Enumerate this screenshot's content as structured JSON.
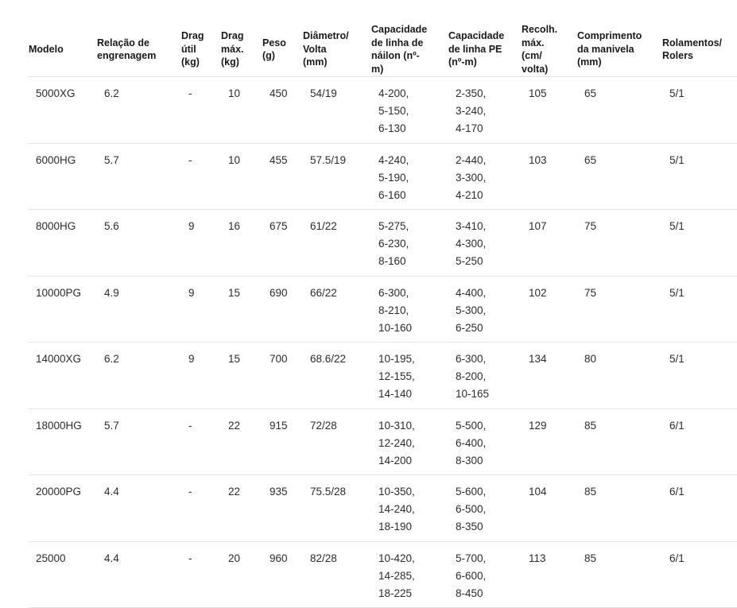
{
  "table": {
    "columns": [
      {
        "label": "Modelo"
      },
      {
        "label": "Relação de\nengrenagem"
      },
      {
        "label": "Drag\nútil\n(kg)"
      },
      {
        "label": "Drag\nmáx.\n(kg)"
      },
      {
        "label": "Peso\n(g)"
      },
      {
        "label": "Diâmetro/\nVolta\n(mm)"
      },
      {
        "label": "Capacidade\nde linha de\nnáilon (nº-\nm)"
      },
      {
        "label": "Capacidade\nde linha PE\n(nº-m)"
      },
      {
        "label": "Recolh.\nmáx.\n(cm/\nvolta)"
      },
      {
        "label": "Comprimento\nda manivela\n(mm)"
      },
      {
        "label": "Rolamentos/\nRolers"
      }
    ],
    "rows": [
      {
        "modelo": "5000XG",
        "relacao": "6.2",
        "drag_util": "-",
        "drag_max": "10",
        "peso": "450",
        "diametro": "54/19",
        "nailon": [
          "4-200,",
          "5-150,",
          "6-130"
        ],
        "pe": [
          "2-350,",
          "3-240,",
          "4-170"
        ],
        "recolhimento": "105",
        "manivela": "65",
        "rolamentos": "5/1"
      },
      {
        "modelo": "6000HG",
        "relacao": "5.7",
        "drag_util": "-",
        "drag_max": "10",
        "peso": "455",
        "diametro": "57.5/19",
        "nailon": [
          "4-240,",
          "5-190,",
          "6-160"
        ],
        "pe": [
          "2-440,",
          "3-300,",
          "4-210"
        ],
        "recolhimento": "103",
        "manivela": "65",
        "rolamentos": "5/1"
      },
      {
        "modelo": "8000HG",
        "relacao": "5.6",
        "drag_util": "9",
        "drag_max": "16",
        "peso": "675",
        "diametro": "61/22",
        "nailon": [
          "5-275,",
          "6-230,",
          "8-160"
        ],
        "pe": [
          "3-410,",
          "4-300,",
          "5-250"
        ],
        "recolhimento": "107",
        "manivela": "75",
        "rolamentos": "5/1"
      },
      {
        "modelo": "10000PG",
        "relacao": "4.9",
        "drag_util": "9",
        "drag_max": "15",
        "peso": "690",
        "diametro": "66/22",
        "nailon": [
          "6-300,",
          "8-210,",
          "10-160"
        ],
        "pe": [
          "4-400,",
          "5-300,",
          "6-250"
        ],
        "recolhimento": "102",
        "manivela": "75",
        "rolamentos": "5/1"
      },
      {
        "modelo": "14000XG",
        "relacao": "6.2",
        "drag_util": "9",
        "drag_max": "15",
        "peso": "700",
        "diametro": "68.6/22",
        "nailon": [
          "10-195,",
          "12-155,",
          "14-140"
        ],
        "pe": [
          "6-300,",
          "8-200,",
          "10-165"
        ],
        "recolhimento": "134",
        "manivela": "80",
        "rolamentos": "5/1"
      },
      {
        "modelo": "18000HG",
        "relacao": "5.7",
        "drag_util": "-",
        "drag_max": "22",
        "peso": "915",
        "diametro": "72/28",
        "nailon": [
          "10-310,",
          "12-240,",
          "14-200"
        ],
        "pe": [
          "5-500,",
          "6-400,",
          "8-300"
        ],
        "recolhimento": "129",
        "manivela": "85",
        "rolamentos": "6/1"
      },
      {
        "modelo": "20000PG",
        "relacao": "4.4",
        "drag_util": "-",
        "drag_max": "22",
        "peso": "935",
        "diametro": "75.5/28",
        "nailon": [
          "10-350,",
          "14-240,",
          "18-190"
        ],
        "pe": [
          "5-600,",
          "6-500,",
          "8-350"
        ],
        "recolhimento": "104",
        "manivela": "85",
        "rolamentos": "6/1"
      },
      {
        "modelo": "25000",
        "relacao": "4.4",
        "drag_util": "-",
        "drag_max": "20",
        "peso": "960",
        "diametro": "82/28",
        "nailon": [
          "10-420,",
          "14-285,",
          "18-225"
        ],
        "pe": [
          "5-700,",
          "6-600,",
          "8-450"
        ],
        "recolhimento": "113",
        "manivela": "85",
        "rolamentos": "6/1"
      }
    ]
  }
}
